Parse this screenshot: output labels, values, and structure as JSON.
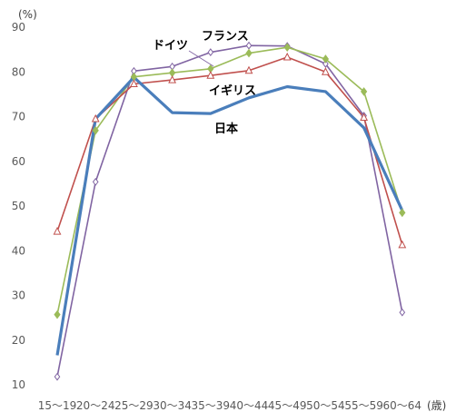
{
  "chart_data": {
    "type": "line",
    "title": "",
    "ylabel": "(%)",
    "xlabel": "(歳)",
    "ylim": [
      10,
      90
    ],
    "yticks": [
      10,
      20,
      30,
      40,
      50,
      60,
      70,
      80,
      90
    ],
    "grid": false,
    "categories": [
      "15〜19",
      "20〜24",
      "25〜29",
      "30〜34",
      "35〜39",
      "40〜44",
      "45〜49",
      "50〜54",
      "55〜59",
      "60〜64"
    ],
    "series": [
      {
        "name": "日本",
        "color": "#4a7ebb",
        "marker": "none",
        "values": [
          16.6,
          69.5,
          78.8,
          70.9,
          70.7,
          74.2,
          76.7,
          75.6,
          67.5,
          49.0
        ]
      },
      {
        "name": "イギリス",
        "color": "#c0504d",
        "marker": "triangle-open",
        "values": [
          44.3,
          69.5,
          77.3,
          78.2,
          79.2,
          80.3,
          83.3,
          80.0,
          69.8,
          41.3
        ]
      },
      {
        "name": "フランス",
        "color": "#8064a2",
        "marker": "diamond-open",
        "values": [
          11.8,
          55.4,
          80.2,
          81.2,
          84.4,
          85.9,
          85.8,
          81.8,
          70.2,
          26.2
        ]
      },
      {
        "name": "ドイツ",
        "color": "#9bbb59",
        "marker": "diamond-filled",
        "values": [
          25.7,
          66.9,
          78.9,
          79.8,
          80.7,
          84.2,
          85.5,
          82.9,
          75.6,
          48.5
        ]
      }
    ]
  }
}
